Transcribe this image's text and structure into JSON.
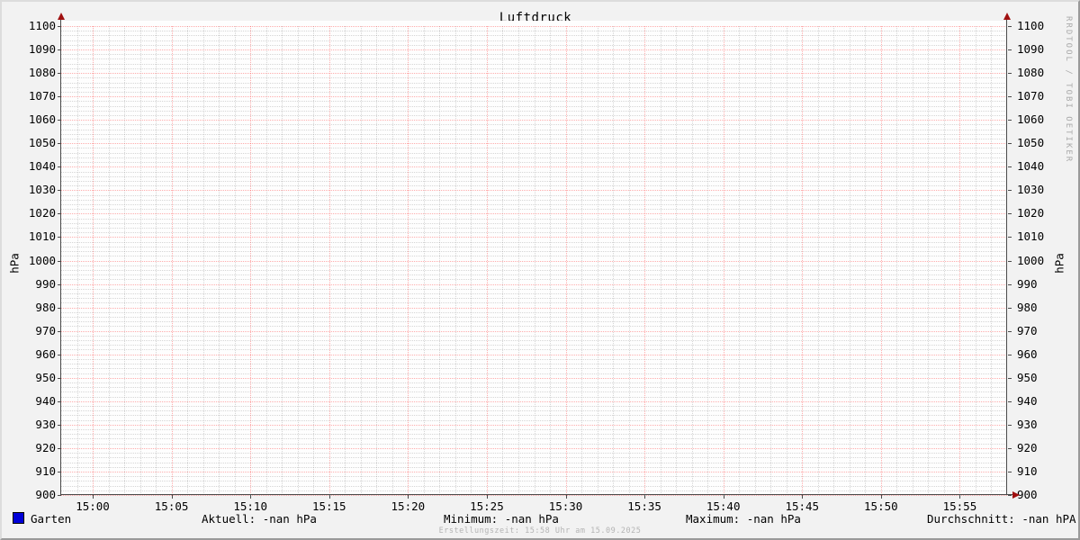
{
  "title": "Luftdruck",
  "watermark": "RRDTOOL / TOBI OETIKER",
  "footer": "Erstellungszeit: 15:58 Uhr am 15.09.2025",
  "y_axis_label_left": "hPa",
  "y_axis_label_right": "hPa",
  "legend": {
    "series_label": "Garten",
    "series_color": "#0000d8",
    "stats": [
      {
        "name": "aktuell",
        "text": "Aktuell: -nan hPa"
      },
      {
        "name": "minimum",
        "text": "Minimum: -nan hPa"
      },
      {
        "name": "maximum",
        "text": "Maximum: -nan hPa"
      },
      {
        "name": "durchschnitt",
        "text": "Durchschnitt: -nan hPA"
      }
    ]
  },
  "colors": {
    "background": "#f2f2f2",
    "canvas": "#fefefe",
    "major_grid": "rgba(255,0,0,0.32)",
    "minor_grid": "rgba(120,120,120,0.30)",
    "axis": "#4a4a4a",
    "arrow": "#a01010",
    "series_blue": "#0000d8",
    "muted_text": "#b4b4b4"
  },
  "chart_data": {
    "type": "line",
    "title": "Luftdruck",
    "xlabel": "",
    "ylabel": "hPa",
    "ylim": [
      900,
      1100
    ],
    "y_major_step": 10,
    "y_minor_step": 2,
    "y_ticks": [
      1100,
      1090,
      1080,
      1070,
      1060,
      1050,
      1040,
      1030,
      1020,
      1010,
      1000,
      990,
      980,
      970,
      960,
      950,
      940,
      930,
      920,
      910,
      900
    ],
    "x_start": "14:58",
    "x_end": "15:58",
    "x_total_minutes": 60,
    "x_major_step_min": 5,
    "x_minor_step_min": 1,
    "x_first_major_offset_min": 2,
    "x_tick_labels": [
      "15:00",
      "15:05",
      "15:10",
      "15:15",
      "15:20",
      "15:25",
      "15:30",
      "15:35",
      "15:40",
      "15:45",
      "15:50",
      "15:55"
    ],
    "grid": true,
    "legend_position": "bottom",
    "series": [
      {
        "name": "Garten",
        "color": "#0000d8",
        "values": []
      }
    ],
    "stats": {
      "aktuell": "-nan hPa",
      "minimum": "-nan hPa",
      "maximum": "-nan hPa",
      "durchschnitt": "-nan hPA"
    }
  }
}
